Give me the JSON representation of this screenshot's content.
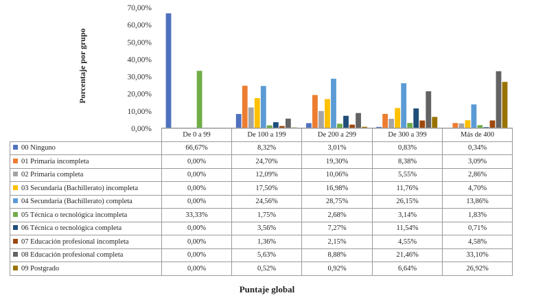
{
  "chart_data": {
    "type": "bar",
    "ylabel": "Porcentaje por grupo",
    "xlabel": "Puntaje global",
    "ylim": [
      0,
      70
    ],
    "yticks": [
      "70,00%",
      "60,00%",
      "50,00%",
      "40,00%",
      "30,00%",
      "20,00%",
      "10,00%",
      "0,00%"
    ],
    "ytick_values": [
      70,
      60,
      50,
      40,
      30,
      20,
      10,
      0
    ],
    "categories": [
      "De 0 a 99",
      "De 100 a 199",
      "De 200 a 299",
      "De 300 a 399",
      "Más de 400"
    ],
    "legend_placement": "table-left",
    "grid": false,
    "series": [
      {
        "name": "00 Ninguno",
        "color": "#4f71be",
        "values": [
          66.67,
          8.32,
          3.01,
          0.83,
          0.34
        ],
        "labels": [
          "66,67%",
          "8,32%",
          "3,01%",
          "0,83%",
          "0,34%"
        ]
      },
      {
        "name": "01 Primaria incompleta",
        "color": "#ed7d31",
        "values": [
          0.0,
          24.7,
          19.3,
          8.38,
          3.09
        ],
        "labels": [
          "0,00%",
          "24,70%",
          "19,30%",
          "8,38%",
          "3,09%"
        ]
      },
      {
        "name": "02 Primaria completa",
        "color": "#a5a5a5",
        "values": [
          0.0,
          12.09,
          10.06,
          5.55,
          2.86
        ],
        "labels": [
          "0,00%",
          "12,09%",
          "10,06%",
          "5,55%",
          "2,86%"
        ]
      },
      {
        "name": "03 Secundaria (Bachillerato) incompleta",
        "color": "#ffc000",
        "values": [
          0.0,
          17.5,
          16.98,
          11.76,
          4.7
        ],
        "labels": [
          "0,00%",
          "17,50%",
          "16,98%",
          "11,76%",
          "4,70%"
        ]
      },
      {
        "name": "04 Secundaria (Bachillerato) completa",
        "color": "#5b9bd5",
        "values": [
          0.0,
          24.56,
          28.75,
          26.15,
          13.86
        ],
        "labels": [
          "0,00%",
          "24,56%",
          "28,75%",
          "26,15%",
          "13,86%"
        ]
      },
      {
        "name": "05 Técnica o tecnológica incompleta",
        "color": "#70ad47",
        "values": [
          33.33,
          1.75,
          2.68,
          3.14,
          1.83
        ],
        "labels": [
          "33,33%",
          "1,75%",
          "2,68%",
          "3,14%",
          "1,83%"
        ]
      },
      {
        "name": "06 Técnica o tecnológica completa",
        "color": "#1f4e79",
        "values": [
          0.0,
          3.56,
          7.27,
          11.54,
          0.71
        ],
        "labels": [
          "0,00%",
          "3,56%",
          "7,27%",
          "11,54%",
          "0,71%"
        ]
      },
      {
        "name": "07 Educación profesional incompleta",
        "color": "#9e480e",
        "values": [
          0.0,
          1.36,
          2.15,
          4.55,
          4.58
        ],
        "labels": [
          "0,00%",
          "1,36%",
          "2,15%",
          "4,55%",
          "4,58%"
        ]
      },
      {
        "name": "08 Educación profesional completa",
        "color": "#636363",
        "values": [
          0.0,
          5.63,
          8.88,
          21.46,
          33.1
        ],
        "labels": [
          "0,00%",
          "5,63%",
          "8,88%",
          "21,46%",
          "33,10%"
        ]
      },
      {
        "name": "09 Postgrado",
        "color": "#997300",
        "values": [
          0.0,
          0.52,
          0.92,
          6.64,
          26.92
        ],
        "labels": [
          "0,00%",
          "0,52%",
          "0,92%",
          "6,64%",
          "26,92%"
        ]
      }
    ]
  }
}
